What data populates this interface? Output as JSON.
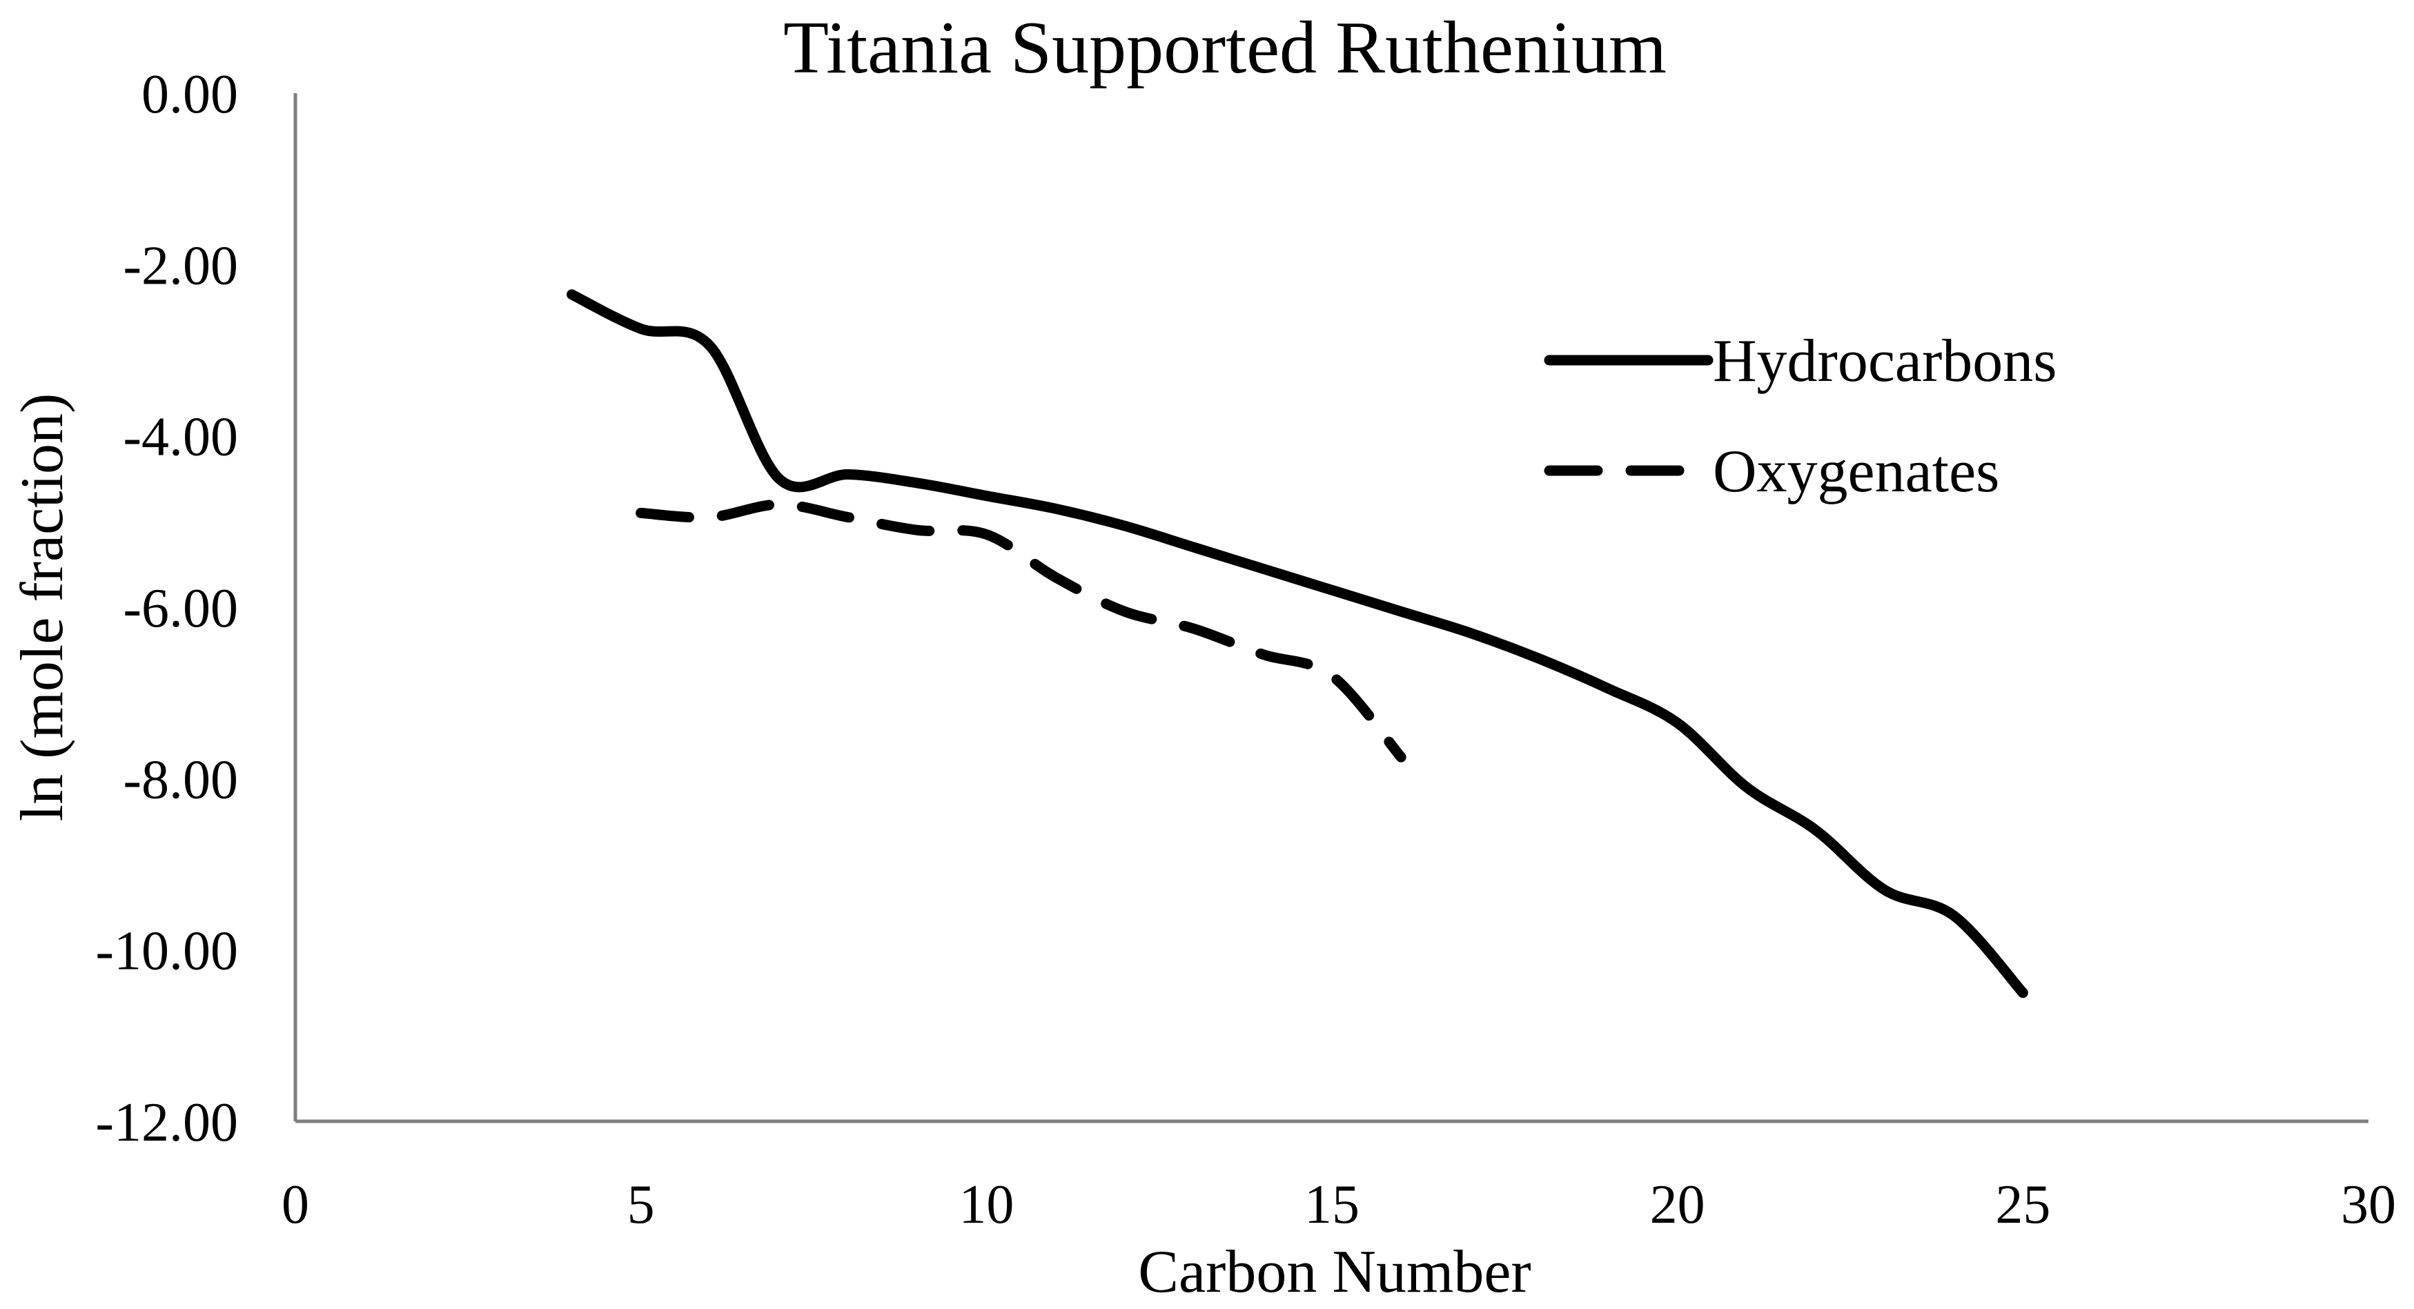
{
  "chart_data": {
    "type": "line",
    "title": "Titania Supported Ruthenium",
    "xlabel": "Carbon Number",
    "ylabel": "ln (mole fraction)",
    "xlim": [
      0,
      30
    ],
    "ylim": [
      -12,
      0
    ],
    "x_ticks": [
      0,
      5,
      10,
      15,
      20,
      25,
      30
    ],
    "y_ticks": [
      0,
      -2,
      -4,
      -6,
      -8,
      -10,
      -12
    ],
    "x_tick_labels": [
      "0",
      "5",
      "10",
      "15",
      "20",
      "25",
      "30"
    ],
    "y_tick_labels": [
      "0.00",
      "-2.00",
      "-4.00",
      "-6.00",
      "-8.00",
      "-10.00",
      "-12.00"
    ],
    "grid": false,
    "legend_position": "right",
    "series": [
      {
        "name": "Hydrocarbons",
        "style": "solid",
        "color": "#000000",
        "x": [
          4,
          5,
          6,
          7,
          8,
          9,
          10,
          11,
          12,
          13,
          14,
          15,
          16,
          17,
          18,
          19,
          20,
          21,
          22,
          23,
          24,
          25
        ],
        "y": [
          -2.35,
          -2.75,
          -2.95,
          -4.5,
          -4.45,
          -4.55,
          -4.7,
          -4.85,
          -5.05,
          -5.3,
          -5.55,
          -5.8,
          -6.05,
          -6.3,
          -6.6,
          -6.95,
          -7.35,
          -8.1,
          -8.6,
          -9.3,
          -9.6,
          -10.5
        ]
      },
      {
        "name": "Oxygenates",
        "style": "dashed",
        "color": "#000000",
        "x": [
          5,
          6,
          7,
          8,
          9,
          10,
          11,
          12,
          13,
          14,
          15,
          16
        ],
        "y": [
          -4.9,
          -4.95,
          -4.8,
          -4.95,
          -5.1,
          -5.15,
          -5.65,
          -6.05,
          -6.25,
          -6.55,
          -6.8,
          -7.75
        ]
      }
    ]
  }
}
